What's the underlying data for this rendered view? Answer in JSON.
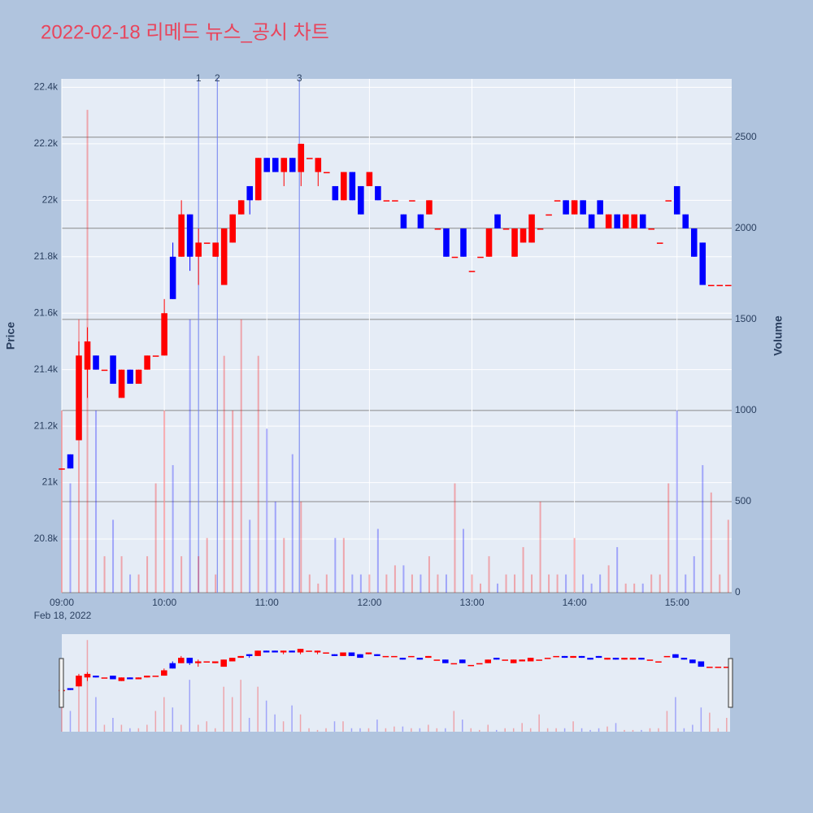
{
  "chart_data": {
    "type": "candlestick",
    "title": "2022-02-18 리메드 뉴스_공시 차트",
    "y_title": "Price",
    "y2_title": "Volume",
    "x_sublabel": "Feb 18, 2022",
    "increasing_color": "#ff0000",
    "decreasing_color": "#0000ff",
    "x": [
      "09:00",
      "09:05",
      "09:10",
      "09:15",
      "09:20",
      "09:25",
      "09:30",
      "09:35",
      "09:40",
      "09:45",
      "09:50",
      "09:55",
      "10:00",
      "10:05",
      "10:10",
      "10:15",
      "10:20",
      "10:25",
      "10:30",
      "10:35",
      "10:40",
      "10:45",
      "10:50",
      "10:55",
      "11:00",
      "11:05",
      "11:10",
      "11:15",
      "11:20",
      "11:25",
      "11:30",
      "11:35",
      "11:40",
      "11:45",
      "11:50",
      "11:55",
      "12:00",
      "12:05",
      "12:10",
      "12:15",
      "12:20",
      "12:25",
      "12:30",
      "12:35",
      "12:40",
      "12:45",
      "12:50",
      "12:55",
      "13:00",
      "13:05",
      "13:10",
      "13:15",
      "13:20",
      "13:25",
      "13:30",
      "13:35",
      "13:40",
      "13:45",
      "13:50",
      "13:55",
      "14:00",
      "14:05",
      "14:10",
      "14:15",
      "14:20",
      "14:25",
      "14:30",
      "14:35",
      "14:40",
      "14:45",
      "14:50",
      "14:55",
      "15:00",
      "15:05",
      "15:10",
      "15:15",
      "15:20",
      "15:25",
      "15:30"
    ],
    "open": [
      21050,
      21100,
      21150,
      21400,
      21450,
      21400,
      21450,
      21300,
      21400,
      21350,
      21400,
      21450,
      21450,
      21800,
      21800,
      21950,
      21800,
      21850,
      21800,
      21700,
      21850,
      21950,
      22050,
      22000,
      22150,
      22150,
      22100,
      22150,
      22100,
      22150,
      22100,
      22100,
      22050,
      22000,
      22100,
      22050,
      22050,
      22050,
      22000,
      22000,
      21950,
      22000,
      21950,
      21950,
      21900,
      21900,
      21800,
      21900,
      21750,
      21800,
      21800,
      21950,
      21900,
      21800,
      21850,
      21850,
      21900,
      21950,
      22000,
      22000,
      21950,
      22000,
      21950,
      22000,
      21900,
      21950,
      21900,
      21900,
      21950,
      21900,
      21850,
      22000,
      22050,
      21950,
      21900,
      21850,
      21700,
      21700,
      21700
    ],
    "high": [
      21050,
      21100,
      21500,
      21550,
      21450,
      21400,
      21450,
      21400,
      21400,
      21400,
      21450,
      21450,
      21650,
      21850,
      22000,
      21950,
      21900,
      21850,
      21850,
      21900,
      21950,
      22000,
      22050,
      22150,
      22150,
      22150,
      22150,
      22150,
      22200,
      22150,
      22150,
      22100,
      22050,
      22100,
      22100,
      22050,
      22100,
      22050,
      22000,
      22000,
      21950,
      22000,
      21950,
      22000,
      21900,
      21900,
      21800,
      21900,
      21750,
      21800,
      21900,
      21950,
      21900,
      21900,
      21900,
      21950,
      21900,
      21950,
      22000,
      22000,
      22000,
      22000,
      21950,
      22000,
      21950,
      21950,
      21950,
      21950,
      21950,
      21900,
      21850,
      22000,
      22050,
      21950,
      21900,
      21850,
      21700,
      21700,
      21700
    ],
    "low": [
      21050,
      21050,
      21150,
      21300,
      21400,
      21400,
      21350,
      21300,
      21350,
      21350,
      21400,
      21450,
      21450,
      21650,
      21800,
      21750,
      21700,
      21850,
      21800,
      21700,
      21850,
      21950,
      21950,
      22000,
      22100,
      22100,
      22050,
      22100,
      22050,
      22150,
      22050,
      22100,
      22000,
      22000,
      22000,
      21950,
      22050,
      22000,
      22000,
      22000,
      21900,
      22000,
      21900,
      21950,
      21900,
      21800,
      21800,
      21800,
      21750,
      21800,
      21800,
      21900,
      21900,
      21800,
      21850,
      21850,
      21900,
      21950,
      22000,
      21950,
      21950,
      21950,
      21900,
      21950,
      21900,
      21900,
      21900,
      21900,
      21900,
      21900,
      21850,
      22000,
      21950,
      21900,
      21800,
      21700,
      21700,
      21700,
      21700
    ],
    "close": [
      21050,
      21050,
      21450,
      21500,
      21400,
      21400,
      21350,
      21400,
      21350,
      21400,
      21450,
      21450,
      21600,
      21650,
      21950,
      21800,
      21850,
      21850,
      21850,
      21900,
      21950,
      22000,
      22000,
      22150,
      22100,
      22100,
      22150,
      22100,
      22200,
      22150,
      22150,
      22100,
      22000,
      22100,
      22000,
      21950,
      22100,
      22000,
      22000,
      22000,
      21900,
      22000,
      21900,
      22000,
      21900,
      21800,
      21800,
      21800,
      21750,
      21800,
      21900,
      21900,
      21900,
      21900,
      21900,
      21950,
      21900,
      21950,
      22000,
      21950,
      22000,
      21950,
      21900,
      21950,
      21950,
      21900,
      21950,
      21950,
      21900,
      21900,
      21850,
      22000,
      21950,
      21900,
      21800,
      21700,
      21700,
      21700,
      21700
    ],
    "volume": [
      1000,
      600,
      1500,
      2650,
      1000,
      200,
      400,
      200,
      100,
      100,
      200,
      600,
      1000,
      700,
      200,
      1500,
      200,
      300,
      100,
      1300,
      1000,
      1500,
      400,
      1300,
      900,
      500,
      300,
      760,
      500,
      100,
      50,
      100,
      300,
      300,
      100,
      100,
      100,
      350,
      100,
      150,
      150,
      100,
      100,
      200,
      100,
      100,
      600,
      350,
      100,
      50,
      200,
      50,
      100,
      100,
      250,
      100,
      500,
      100,
      100,
      100,
      300,
      100,
      50,
      100,
      150,
      250,
      50,
      50,
      50,
      100,
      100,
      600,
      1000,
      100,
      200,
      700,
      550,
      100,
      400
    ],
    "news": [
      {
        "label": "1",
        "x": "10:20"
      },
      {
        "label": "2",
        "x": "10:31"
      },
      {
        "label": "3",
        "x": "11:19"
      }
    ],
    "xlim": [
      "09:00",
      "15:32"
    ],
    "xticks": [
      "09:00",
      "10:00",
      "11:00",
      "12:00",
      "13:00",
      "14:00",
      "15:00"
    ],
    "ylim": [
      20610,
      22430
    ],
    "yticks": [
      {
        "value": 20800,
        "label": "20.8k"
      },
      {
        "value": 21000,
        "label": "21k"
      },
      {
        "value": 21200,
        "label": "21.2k"
      },
      {
        "value": 21400,
        "label": "21.4k"
      },
      {
        "value": 21600,
        "label": "21.6k"
      },
      {
        "value": 21800,
        "label": "21.8k"
      },
      {
        "value": 22000,
        "label": "22k"
      },
      {
        "value": 22200,
        "label": "22.2k"
      },
      {
        "value": 22400,
        "label": "22.4k"
      }
    ],
    "y2lim": [
      0,
      2820
    ],
    "y2ticks": [
      0,
      500,
      1000,
      1500,
      2000,
      2500
    ]
  }
}
